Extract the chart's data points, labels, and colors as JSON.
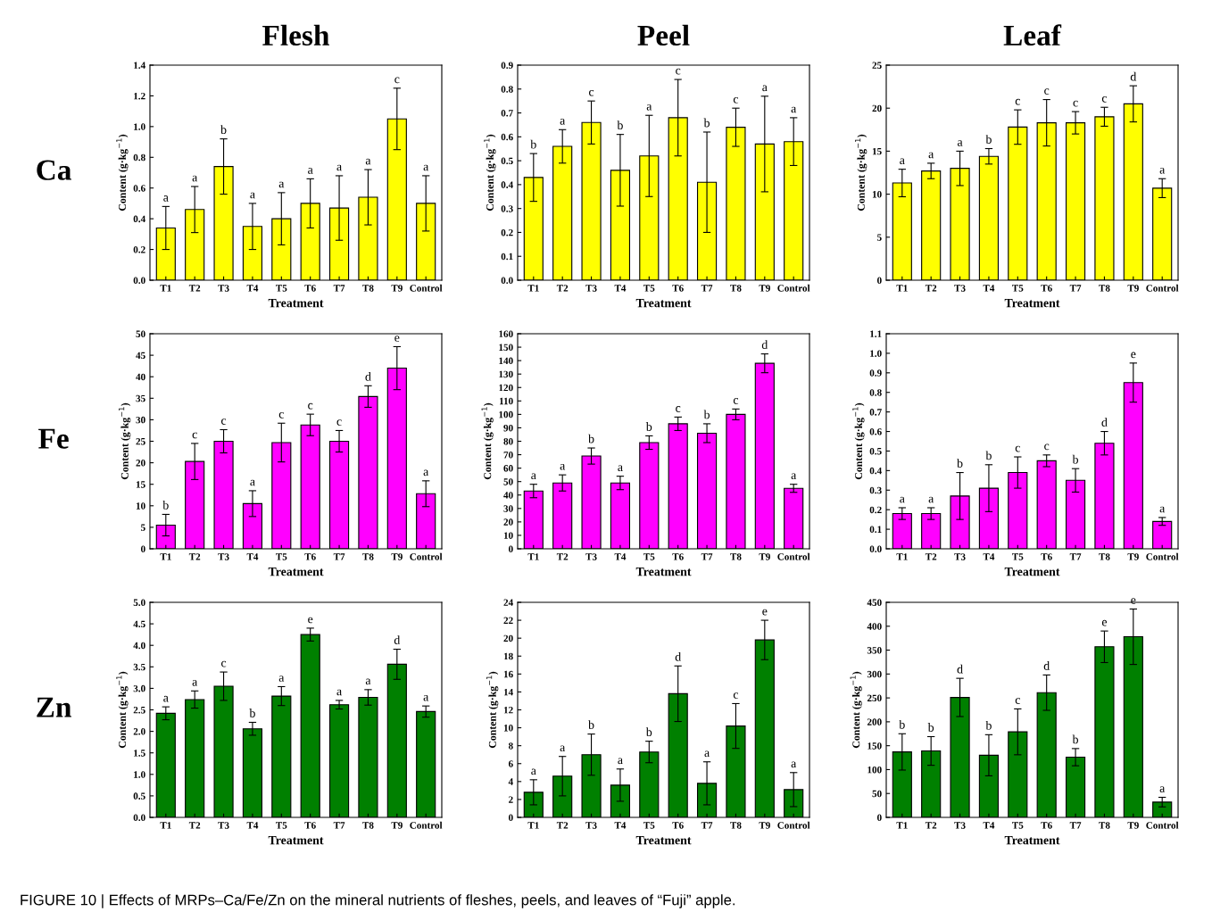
{
  "chart_data": [
    {
      "type": "bar",
      "title": "Flesh",
      "xlabel": "Treatment",
      "ylabel": "Content (g·kg$^{−1}$)",
      "categories": [
        "T1",
        "T2",
        "T3",
        "T4",
        "T5",
        "T6",
        "T7",
        "T8",
        "T9",
        "Control"
      ],
      "series": [
        {
          "color": "#ffff00",
          "values": [
            0.34,
            0.46,
            0.74,
            0.35,
            0.4,
            0.5,
            0.47,
            0.54,
            1.05,
            0.5
          ],
          "errors": [
            0.14,
            0.15,
            0.18,
            0.15,
            0.17,
            0.16,
            0.21,
            0.18,
            0.2,
            0.18
          ]
        }
      ],
      "ylim": [
        0,
        1.4
      ],
      "yticks": [
        {
          "value": 0,
          "label": "0.0"
        },
        0.2,
        0.4,
        0.6,
        0.8,
        {
          "value": 1,
          "label": "1.0"
        },
        1.2,
        1.4
      ],
      "grid": false,
      "annotations": [
        "Ca",
        "a",
        "a",
        "b",
        "a",
        "a",
        "a",
        "a",
        "a",
        "c",
        "a"
      ]
    },
    {
      "type": "bar",
      "title": "Peel",
      "xlabel": "Treatment",
      "ylabel": "Content (g·kg$^{−1}$)",
      "categories": [
        "T1",
        "T2",
        "T3",
        "T4",
        "T5",
        "T6",
        "T7",
        "T8",
        "T9",
        "Control"
      ],
      "series": [
        {
          "color": "#ffff00",
          "values": [
            0.43,
            0.56,
            0.66,
            0.46,
            0.52,
            0.68,
            0.41,
            0.64,
            0.57,
            0.58
          ],
          "errors": [
            0.1,
            0.07,
            0.09,
            0.15,
            0.17,
            0.16,
            0.21,
            0.08,
            0.2,
            0.1
          ]
        }
      ],
      "ylim": [
        0,
        0.9
      ],
      "yticks": [
        {
          "value": 0,
          "label": "0.0"
        },
        0.1,
        0.2,
        0.3,
        0.4,
        0.5,
        0.6,
        0.7,
        0.8,
        0.9
      ],
      "grid": false,
      "annotations": [
        "b",
        "a",
        "c",
        "b",
        "a",
        "c",
        "b",
        "c",
        "a",
        "a"
      ]
    },
    {
      "type": "bar",
      "title": "Leaf",
      "xlabel": "Treatment",
      "ylabel": "Content (g·kg$^{−1}$)",
      "categories": [
        "T1",
        "T2",
        "T3",
        "T4",
        "T5",
        "T6",
        "T7",
        "T8",
        "T9",
        "Control"
      ],
      "series": [
        {
          "color": "#ffff00",
          "values": [
            11.3,
            12.7,
            13.0,
            14.4,
            17.8,
            18.3,
            18.3,
            19.0,
            20.5,
            10.7
          ],
          "errors": [
            1.6,
            0.9,
            2.0,
            0.9,
            2.0,
            2.7,
            1.3,
            1.1,
            2.1,
            1.1
          ]
        }
      ],
      "ylim": [
        0,
        25
      ],
      "yticks": [
        0,
        5,
        10,
        15,
        20,
        25
      ],
      "grid": false,
      "annotations": [
        "a",
        "a",
        "a",
        "b",
        "c",
        "c",
        "c",
        "c",
        "d",
        "a"
      ]
    },
    {
      "type": "bar",
      "xlabel": "Treatment",
      "ylabel": "Content (g·kg$^{−1}$)",
      "categories": [
        "T1",
        "T2",
        "T3",
        "T4",
        "T5",
        "T6",
        "T7",
        "T8",
        "T9",
        "Control"
      ],
      "series": [
        {
          "color": "#ff00ff",
          "values": [
            5.5,
            20.3,
            25.0,
            10.5,
            24.7,
            28.8,
            25.0,
            35.4,
            42.0,
            12.8
          ],
          "errors": [
            2.5,
            4.2,
            2.7,
            3.0,
            4.5,
            2.5,
            2.5,
            2.5,
            5.0,
            3.0
          ]
        }
      ],
      "ylim": [
        0,
        50
      ],
      "yticks": [
        0,
        5,
        10,
        15,
        20,
        25,
        30,
        35,
        40,
        45,
        50
      ],
      "grid": false,
      "annotations": [
        "Fe",
        "b",
        "c",
        "c",
        "a",
        "c",
        "c",
        "c",
        "d",
        "e",
        "a"
      ]
    },
    {
      "type": "bar",
      "xlabel": "Treatment",
      "ylabel": "Content (g·kg$^{−1}$)",
      "categories": [
        "T1",
        "T2",
        "T3",
        "T4",
        "T5",
        "T6",
        "T7",
        "T8",
        "T9",
        "Control"
      ],
      "series": [
        {
          "color": "#ff00ff",
          "values": [
            43,
            49,
            69,
            49,
            79,
            93,
            86,
            100,
            138,
            45
          ],
          "errors": [
            5,
            6,
            6,
            5,
            5,
            5,
            7,
            4,
            7,
            3
          ]
        }
      ],
      "ylim": [
        0,
        160
      ],
      "yticks": [
        0,
        10,
        20,
        30,
        40,
        50,
        60,
        70,
        80,
        90,
        100,
        110,
        120,
        130,
        140,
        150,
        160
      ],
      "grid": false,
      "annotations": [
        "a",
        "a",
        "b",
        "a",
        "b",
        "c",
        "b",
        "c",
        "d",
        "a"
      ]
    },
    {
      "type": "bar",
      "xlabel": "Treatment",
      "ylabel": "Content (g·kg$^{−1}$)",
      "categories": [
        "T1",
        "T2",
        "T3",
        "T4",
        "T5",
        "T6",
        "T7",
        "T8",
        "T9",
        "Control"
      ],
      "series": [
        {
          "color": "#ff00ff",
          "values": [
            0.18,
            0.18,
            0.27,
            0.31,
            0.39,
            0.45,
            0.35,
            0.54,
            0.85,
            0.14
          ],
          "errors": [
            0.03,
            0.03,
            0.12,
            0.12,
            0.08,
            0.03,
            0.06,
            0.06,
            0.1,
            0.02
          ]
        }
      ],
      "ylim": [
        0,
        1.1
      ],
      "yticks": [
        {
          "value": 0,
          "label": "0.0"
        },
        0.1,
        0.2,
        0.3,
        0.4,
        0.5,
        0.6,
        0.7,
        0.8,
        0.9,
        {
          "value": 1,
          "label": "1.0"
        },
        1.1
      ],
      "grid": false,
      "annotations": [
        "a",
        "a",
        "b",
        "b",
        "c",
        "c",
        "b",
        "d",
        "e",
        "a"
      ]
    },
    {
      "type": "bar",
      "xlabel": "Treatment",
      "ylabel": "Content (g·kg$^{−1}$)",
      "categories": [
        "T1",
        "T2",
        "T3",
        "T4",
        "T5",
        "T6",
        "T7",
        "T8",
        "T9",
        "Control"
      ],
      "series": [
        {
          "color": "#008000",
          "values": [
            2.42,
            2.74,
            3.05,
            2.06,
            2.82,
            4.25,
            2.62,
            2.79,
            3.56,
            2.46
          ],
          "errors": [
            0.15,
            0.2,
            0.33,
            0.15,
            0.22,
            0.15,
            0.1,
            0.18,
            0.35,
            0.13
          ]
        }
      ],
      "ylim": [
        0,
        5
      ],
      "yticks": [
        {
          "value": 0,
          "label": "0.0"
        },
        0.5,
        {
          "value": 1,
          "label": "1.0"
        },
        1.5,
        {
          "value": 2,
          "label": "2.0"
        },
        2.5,
        {
          "value": 3,
          "label": "3.0"
        },
        3.5,
        {
          "value": 4,
          "label": "4.0"
        },
        4.5,
        {
          "value": 5,
          "label": "5.0"
        }
      ],
      "grid": false,
      "annotations": [
        "Zn",
        "a",
        "a",
        "c",
        "b",
        "a",
        "e",
        "a",
        "a",
        "d",
        "a"
      ]
    },
    {
      "type": "bar",
      "xlabel": "Treatment",
      "ylabel": "Content (g·kg$^{−1}$)",
      "categories": [
        "T1",
        "T2",
        "T3",
        "T4",
        "T5",
        "T6",
        "T7",
        "T8",
        "T9",
        "Control"
      ],
      "series": [
        {
          "color": "#008000",
          "values": [
            2.8,
            4.6,
            7.0,
            3.6,
            7.3,
            13.8,
            3.8,
            10.2,
            19.8,
            3.1
          ],
          "errors": [
            1.4,
            2.2,
            2.3,
            1.8,
            1.2,
            3.1,
            2.4,
            2.5,
            2.2,
            1.9
          ]
        }
      ],
      "ylim": [
        0,
        24
      ],
      "yticks": [
        0,
        2,
        4,
        6,
        8,
        10,
        12,
        14,
        16,
        18,
        20,
        22,
        24
      ],
      "grid": false,
      "annotations": [
        "a",
        "a",
        "b",
        "a",
        "b",
        "d",
        "a",
        "c",
        "e",
        "a"
      ]
    },
    {
      "type": "bar",
      "xlabel": "Treatment",
      "ylabel": "Content (g·kg$^{−1}$)",
      "categories": [
        "T1",
        "T2",
        "T3",
        "T4",
        "T5",
        "T6",
        "T7",
        "T8",
        "T9",
        "Control"
      ],
      "series": [
        {
          "color": "#008000",
          "values": [
            137,
            139,
            251,
            130,
            179,
            261,
            126,
            357,
            378,
            32
          ],
          "errors": [
            38,
            30,
            40,
            43,
            48,
            37,
            18,
            33,
            58,
            10
          ]
        }
      ],
      "ylim": [
        0,
        450
      ],
      "yticks": [
        0,
        50,
        100,
        150,
        200,
        250,
        300,
        350,
        400,
        450
      ],
      "grid": false,
      "annotations": [
        "FIGURE 10 | Effects of MRPs–Ca/Fe/Zn on the mineral nutrients of fleshes, peels, and leaves of “Fuji” apple.",
        "b",
        "b",
        "d",
        "b",
        "c",
        "d",
        "b",
        "e",
        "e",
        "a"
      ]
    }
  ]
}
